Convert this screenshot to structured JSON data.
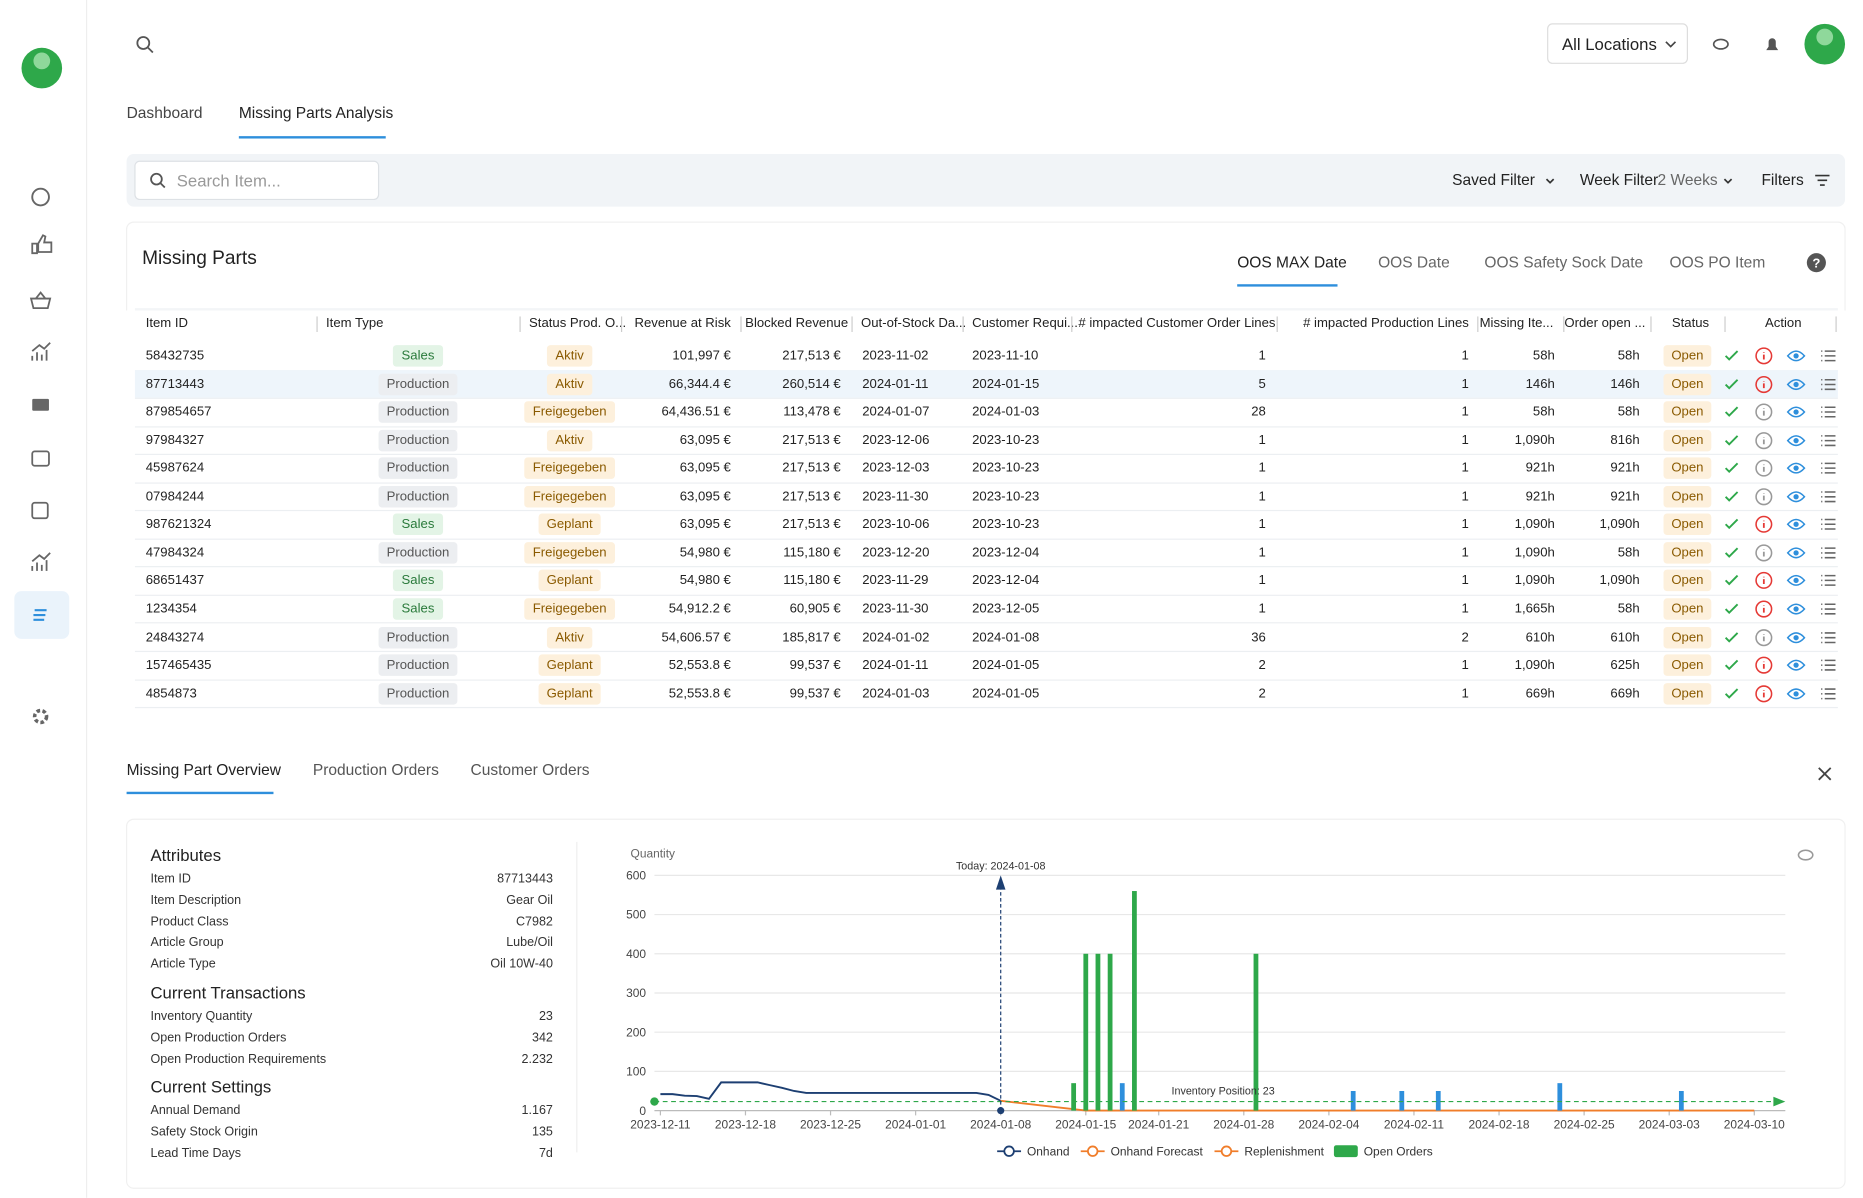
{
  "header": {
    "location": "All Locations"
  },
  "nav_tabs": [
    "Dashboard",
    "Missing Parts Analysis"
  ],
  "toolbar": {
    "search_placeholder": "Search Item...",
    "saved_filter": "Saved Filter",
    "week_filter": "Week Filter",
    "week_value": "2 Weeks",
    "filters": "Filters"
  },
  "missing_parts": {
    "title": "Missing Parts",
    "tabs": [
      "OOS MAX Date",
      "OOS Date",
      "OOS Safety Sock Date",
      "OOS PO Item"
    ],
    "columns": [
      "Item ID",
      "Item Type",
      "Status Prod. O...",
      "Revenue at Risk",
      "Blocked Revenue",
      "Out-of-Stock Da...",
      "Customer Requi...",
      "# impacted Customer Order Lines",
      "# impacted Production Lines",
      "Missing Ite...",
      "Order open ...",
      "Status",
      "Action"
    ],
    "rows": [
      {
        "cells": [
          "58432735",
          "Sales",
          "Aktiv",
          "101,997 €",
          "217,513 €",
          "2023-11-02",
          "2023-11-10",
          "1",
          "1",
          "58h",
          "58h",
          "Open"
        ],
        "alert": true
      },
      {
        "cells": [
          "87713443",
          "Production",
          "Aktiv",
          "66,344.4 €",
          "260,514 €",
          "2024-01-11",
          "2024-01-15",
          "5",
          "1",
          "146h",
          "146h",
          "Open"
        ],
        "alert": true
      },
      {
        "cells": [
          "879854657",
          "Production",
          "Freigegeben",
          "64,436.51 €",
          "113,478 €",
          "2024-01-07",
          "2024-01-03",
          "28",
          "1",
          "58h",
          "58h",
          "Open"
        ],
        "alert": false
      },
      {
        "cells": [
          "97984327",
          "Production",
          "Aktiv",
          "63,095 €",
          "217,513 €",
          "2023-12-06",
          "2023-10-23",
          "1",
          "1",
          "1,090h",
          "816h",
          "Open"
        ],
        "alert": false
      },
      {
        "cells": [
          "45987624",
          "Production",
          "Freigegeben",
          "63,095 €",
          "217,513 €",
          "2023-12-03",
          "2023-10-23",
          "1",
          "1",
          "921h",
          "921h",
          "Open"
        ],
        "alert": false
      },
      {
        "cells": [
          "07984244",
          "Production",
          "Freigegeben",
          "63,095 €",
          "217,513 €",
          "2023-11-30",
          "2023-10-23",
          "1",
          "1",
          "921h",
          "921h",
          "Open"
        ],
        "alert": false
      },
      {
        "cells": [
          "987621324",
          "Sales",
          "Geplant",
          "63,095 €",
          "217,513 €",
          "2023-10-06",
          "2023-10-23",
          "1",
          "1",
          "1,090h",
          "1,090h",
          "Open"
        ],
        "alert": true
      },
      {
        "cells": [
          "47984324",
          "Production",
          "Freigegeben",
          "54,980 €",
          "115,180 €",
          "2023-12-20",
          "2023-12-04",
          "1",
          "1",
          "1,090h",
          "58h",
          "Open"
        ],
        "alert": false
      },
      {
        "cells": [
          "68651437",
          "Sales",
          "Geplant",
          "54,980 €",
          "115,180 €",
          "2023-11-29",
          "2023-12-04",
          "1",
          "1",
          "1,090h",
          "1,090h",
          "Open"
        ],
        "alert": true
      },
      {
        "cells": [
          "1234354",
          "Sales",
          "Freigegeben",
          "54,912.2 €",
          "60,905 €",
          "2023-11-30",
          "2023-12-05",
          "1",
          "1",
          "1,665h",
          "58h",
          "Open"
        ],
        "alert": true
      },
      {
        "cells": [
          "24843274",
          "Production",
          "Aktiv",
          "54,606.57 €",
          "185,817 €",
          "2024-01-02",
          "2024-01-08",
          "36",
          "2",
          "610h",
          "610h",
          "Open"
        ],
        "alert": false
      },
      {
        "cells": [
          "157465435",
          "Production",
          "Geplant",
          "52,553.8 €",
          "99,537 €",
          "2024-01-11",
          "2024-01-05",
          "2",
          "1",
          "1,090h",
          "625h",
          "Open"
        ],
        "alert": true
      },
      {
        "cells": [
          "4854873",
          "Production",
          "Geplant",
          "52,553.8 €",
          "99,537 €",
          "2024-01-03",
          "2024-01-05",
          "2",
          "1",
          "669h",
          "669h",
          "Open"
        ],
        "alert": true
      }
    ]
  },
  "overview": {
    "tabs": [
      "Missing Part Overview",
      "Production Orders",
      "Customer Orders"
    ],
    "sections": [
      {
        "title": "Attributes",
        "rows": [
          [
            "Item ID",
            "87713443"
          ],
          [
            "Item Description",
            "Gear Oil"
          ],
          [
            "Product Class",
            "C7982"
          ],
          [
            "Article Group",
            "Lube/Oil"
          ],
          [
            "Article Type",
            "Oil 10W-40"
          ]
        ]
      },
      {
        "title": "Current Transactions",
        "rows": [
          [
            "Inventory Quantity",
            "23"
          ],
          [
            "Open Production Orders",
            "342"
          ],
          [
            "Open Production Requirements",
            "2.232"
          ]
        ]
      },
      {
        "title": "Current Settings",
        "rows": [
          [
            "Annual Demand",
            "1.167"
          ],
          [
            "Safety Stock Origin",
            "135"
          ],
          [
            "Lead Time Days",
            "7d"
          ]
        ]
      }
    ]
  },
  "chart": {
    "type": "combo",
    "y_label": "Quantity",
    "ylim": [
      0,
      600
    ],
    "yticks": [
      0,
      100,
      200,
      300,
      400,
      500,
      600
    ],
    "xlim": [
      "2023-12-11",
      "2024-03-10"
    ],
    "xticks": [
      "2023-12-11",
      "2023-12-18",
      "2023-12-25",
      "2024-01-01",
      "2024-01-08",
      "2024-01-15",
      "2024-01-21",
      "2024-01-28",
      "2024-02-04",
      "2024-02-11",
      "2024-02-18",
      "2024-02-25",
      "2024-03-03",
      "2024-03-10"
    ],
    "today": {
      "x": "2024-01-08",
      "text": "Today: 2024-01-08"
    },
    "inventory_position": {
      "value": 23,
      "text": "Inventory Position: 23",
      "color": "#2ea84a"
    },
    "series": [
      {
        "name": "Onhand",
        "type": "line",
        "color": "#1d3f72",
        "x": [
          "2023-12-11",
          "2023-12-12",
          "2023-12-13",
          "2023-12-14",
          "2023-12-15",
          "2023-12-16",
          "2023-12-19",
          "2023-12-20",
          "2023-12-21",
          "2023-12-22",
          "2023-12-23",
          "2024-01-06",
          "2024-01-07",
          "2024-01-08"
        ],
        "values": [
          42,
          42,
          38,
          37,
          30,
          72,
          72,
          65,
          58,
          50,
          45,
          45,
          40,
          25
        ]
      },
      {
        "name": "Onhand Forecast",
        "type": "line",
        "color": "#f07d2a",
        "x": [
          "2024-01-08",
          "2024-01-15",
          "2024-03-10"
        ],
        "values": [
          25,
          0,
          0
        ]
      },
      {
        "name": "Replenishment",
        "type": "bar",
        "color": "#f07d2a",
        "bar_color": "#2e8fdc",
        "x": [
          "2024-01-18",
          "2024-02-06",
          "2024-02-10",
          "2024-02-13",
          "2024-02-23",
          "2024-03-04"
        ],
        "values": [
          70,
          50,
          50,
          50,
          70,
          50
        ]
      },
      {
        "name": "Open Orders",
        "type": "bar",
        "color": "#2ea84a",
        "x": [
          "2024-01-14",
          "2024-01-15",
          "2024-01-16",
          "2024-01-17",
          "2024-01-19",
          "2024-01-29"
        ],
        "values": [
          70,
          400,
          400,
          400,
          560,
          400
        ]
      }
    ]
  }
}
